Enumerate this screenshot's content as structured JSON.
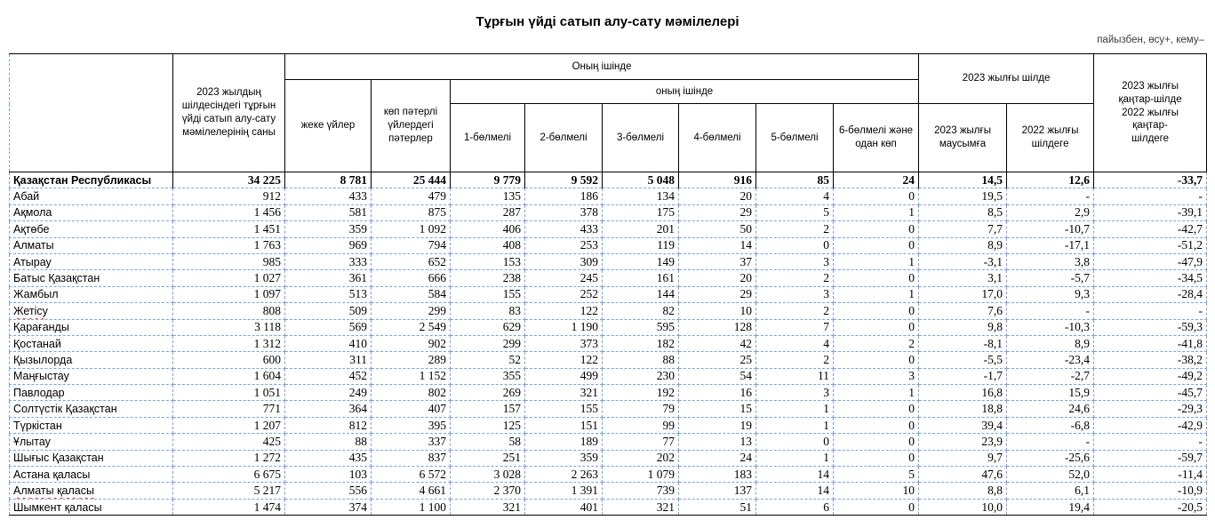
{
  "title": "Тұрғын үйді сатып алу-сату мәмілелері",
  "note": "пайызбен, өсу+, кему–",
  "table": {
    "header": {
      "corner": "",
      "col_count": "2023 жылдың шілдесіндегі тұрғын үйді сатып алу-сату мәмілелерінің саны",
      "group_of_which": "Оның ішінде",
      "col_individual_houses": "жеке үйлер",
      "col_apartments": "көп пәтерлі үйлердегі пәтерлер",
      "subgroup_of_which": "оның ішінде",
      "rooms": [
        "1-бөлмелі",
        "2-бөлмелі",
        "3-бөлмелі",
        "4-бөлмелі",
        "5-бөлмелі",
        "6-бөлмелі және одан көп"
      ],
      "group_july2023": "2023 жылғы шілде",
      "col_to_june2023": "2023 жылғы маусымға",
      "col_to_july2022": "2022 жылғы шілдеге",
      "col_jan_july_line1": "2023 жылғы қаңтар-шілде",
      "col_jan_july_line2": "2022 жылғы қаңтар-шілдеге"
    },
    "rows": [
      {
        "name": "Қазақстан Республикасы",
        "bold": true,
        "values": [
          "34 225",
          "8 781",
          "25 444",
          "9 779",
          "9 592",
          "5 048",
          "916",
          "85",
          "24",
          "14,5",
          "12,6",
          "-33,7"
        ]
      },
      {
        "name": "Абай",
        "values": [
          "912",
          "433",
          "479",
          "135",
          "186",
          "134",
          "20",
          "4",
          "0",
          "19,5",
          "-",
          "-"
        ]
      },
      {
        "name": "Ақмола",
        "values": [
          "1 456",
          "581",
          "875",
          "287",
          "378",
          "175",
          "29",
          "5",
          "1",
          "8,5",
          "2,9",
          "-39,1"
        ]
      },
      {
        "name": "Ақтөбе",
        "values": [
          "1 451",
          "359",
          "1 092",
          "406",
          "433",
          "201",
          "50",
          "2",
          "0",
          "7,7",
          "-10,7",
          "-42,7"
        ]
      },
      {
        "name": "Алматы",
        "values": [
          "1 763",
          "969",
          "794",
          "408",
          "253",
          "119",
          "14",
          "0",
          "0",
          "8,9",
          "-17,1",
          "-51,2"
        ]
      },
      {
        "name": "Атырау",
        "values": [
          "985",
          "333",
          "652",
          "153",
          "309",
          "149",
          "37",
          "3",
          "1",
          "-3,1",
          "3,8",
          "-47,9"
        ]
      },
      {
        "name": "Батыс Қазақстан",
        "values": [
          "1 027",
          "361",
          "666",
          "238",
          "245",
          "161",
          "20",
          "2",
          "0",
          "3,1",
          "-5,7",
          "-34,5"
        ]
      },
      {
        "name": "Жамбыл",
        "values": [
          "1 097",
          "513",
          "584",
          "155",
          "252",
          "144",
          "29",
          "3",
          "1",
          "17,0",
          "9,3",
          "-28,4"
        ]
      },
      {
        "name": "Жетісу",
        "misspell": true,
        "values": [
          "808",
          "509",
          "299",
          "83",
          "122",
          "82",
          "10",
          "2",
          "0",
          "7,6",
          "-",
          "-"
        ]
      },
      {
        "name": "Қарағанды",
        "values": [
          "3 118",
          "569",
          "2 549",
          "629",
          "1 190",
          "595",
          "128",
          "7",
          "0",
          "9,8",
          "-10,3",
          "-59,3"
        ]
      },
      {
        "name": "Қостанай",
        "values": [
          "1 312",
          "410",
          "902",
          "299",
          "373",
          "182",
          "42",
          "4",
          "2",
          "-8,1",
          "8,9",
          "-41,8"
        ]
      },
      {
        "name": "Қызылорда",
        "values": [
          "600",
          "311",
          "289",
          "52",
          "122",
          "88",
          "25",
          "2",
          "0",
          "-5,5",
          "-23,4",
          "-38,2"
        ]
      },
      {
        "name": "Маңғыстау",
        "values": [
          "1 604",
          "452",
          "1 152",
          "355",
          "499",
          "230",
          "54",
          "11",
          "3",
          "-1,7",
          "-2,7",
          "-49,2"
        ]
      },
      {
        "name": "Павлодар",
        "values": [
          "1 051",
          "249",
          "802",
          "269",
          "321",
          "192",
          "16",
          "3",
          "1",
          "16,8",
          "15,9",
          "-45,7"
        ]
      },
      {
        "name": "Солтүстік Қазақстан",
        "values": [
          "771",
          "364",
          "407",
          "157",
          "155",
          "79",
          "15",
          "1",
          "0",
          "18,8",
          "24,6",
          "-29,3"
        ]
      },
      {
        "name": "Түркістан",
        "values": [
          "1 207",
          "812",
          "395",
          "125",
          "151",
          "99",
          "19",
          "1",
          "0",
          "39,4",
          "-6,8",
          "-42,9"
        ]
      },
      {
        "name": "Ұлытау",
        "values": [
          "425",
          "88",
          "337",
          "58",
          "189",
          "77",
          "13",
          "0",
          "0",
          "23,9",
          "-",
          "-"
        ]
      },
      {
        "name": "Шығыс Қазақстан",
        "values": [
          "1 272",
          "435",
          "837",
          "251",
          "359",
          "202",
          "24",
          "1",
          "0",
          "9,7",
          "-25,6",
          "-59,7"
        ]
      },
      {
        "name": "Астана қаласы",
        "values": [
          "6 675",
          "103",
          "6 572",
          "3 028",
          "2 263",
          "1 079",
          "183",
          "14",
          "5",
          "47,6",
          "52,0",
          "-11,4"
        ]
      },
      {
        "name": "Алматы қаласы",
        "misspell": true,
        "values": [
          "5 217",
          "556",
          "4 661",
          "2 370",
          "1 391",
          "739",
          "137",
          "14",
          "10",
          "8,8",
          "6,1",
          "-10,9"
        ]
      },
      {
        "name": "Шымкент қаласы",
        "values": [
          "1 474",
          "374",
          "1 100",
          "321",
          "401",
          "321",
          "51",
          "6",
          "0",
          "10,0",
          "19,4",
          "-20,5"
        ]
      }
    ]
  },
  "colors": {
    "gridline_dashed": "#7aa3d8",
    "border_solid": "#000000",
    "spellcheck_underline": "#e03c31"
  }
}
